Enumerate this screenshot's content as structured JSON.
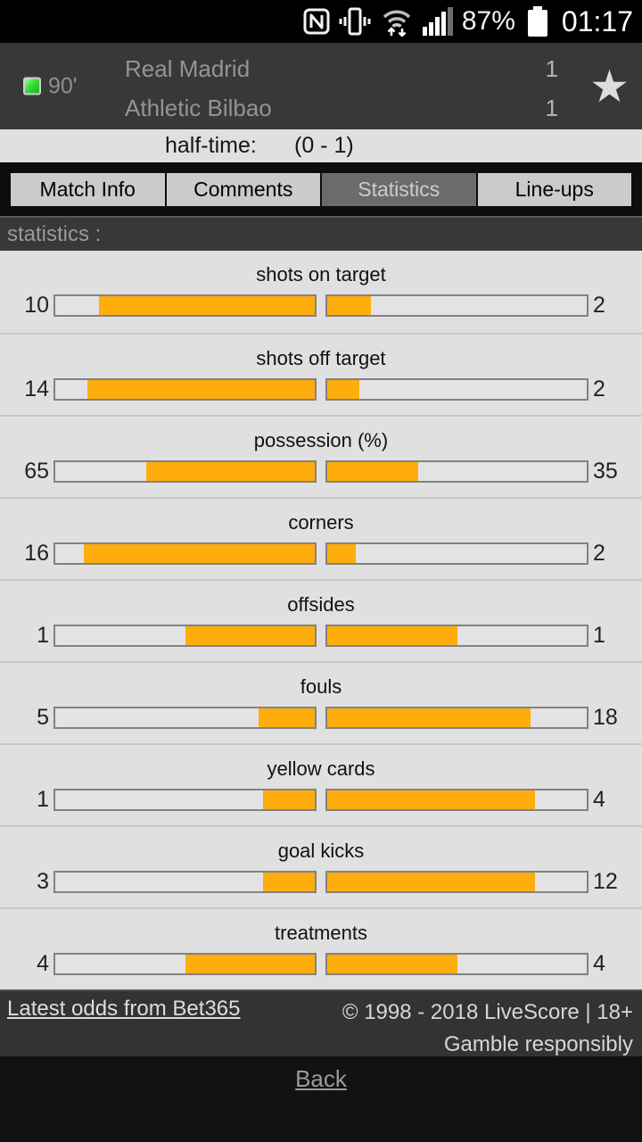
{
  "status_bar": {
    "battery_percent": "87%",
    "time": "01:17",
    "icons": [
      "nfc-icon",
      "vibrate-icon",
      "wifi-icon",
      "signal-icon",
      "battery-icon"
    ]
  },
  "match_header": {
    "minute": "90'",
    "home_team": "Real Madrid",
    "away_team": "Athletic Bilbao",
    "home_score": "1",
    "away_score": "1",
    "favorite_icon": "star-icon"
  },
  "half_time": {
    "label": "half-time:",
    "score": "(0 - 1)"
  },
  "tabs": [
    {
      "label": "Match Info",
      "active": false
    },
    {
      "label": "Comments",
      "active": false
    },
    {
      "label": "Statistics",
      "active": true
    },
    {
      "label": "Line-ups",
      "active": false
    }
  ],
  "statistics_header": "statistics :",
  "statistics": [
    {
      "label": "shots on target",
      "home": 10,
      "away": 2
    },
    {
      "label": "shots off target",
      "home": 14,
      "away": 2
    },
    {
      "label": "possession (%)",
      "home": 65,
      "away": 35
    },
    {
      "label": "corners",
      "home": 16,
      "away": 2
    },
    {
      "label": "offsides",
      "home": 1,
      "away": 1
    },
    {
      "label": "fouls",
      "home": 5,
      "away": 18
    },
    {
      "label": "yellow cards",
      "home": 1,
      "away": 4
    },
    {
      "label": "goal kicks",
      "home": 3,
      "away": 12
    },
    {
      "label": "treatments",
      "home": 4,
      "away": 4
    }
  ],
  "bar_colors": {
    "fill": "#ffad0d",
    "track": "#e3e3e3",
    "border": "#828282"
  },
  "footer": {
    "odds_link": "Latest odds from Bet365",
    "copyright": "© 1998 - 2018 LiveScore | 18+",
    "gamble_responsibly": "Gamble responsibly"
  },
  "back_label": "Back"
}
